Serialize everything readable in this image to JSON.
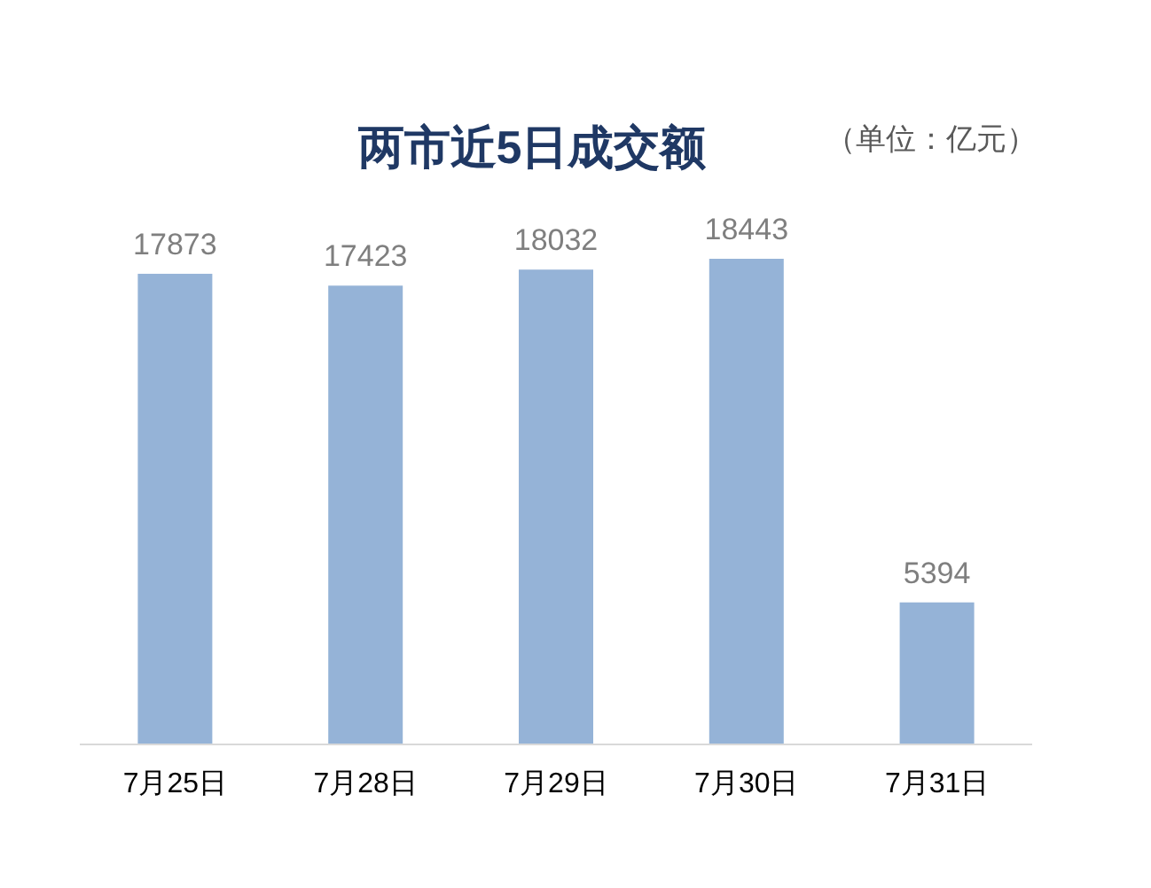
{
  "chart_data": {
    "type": "bar",
    "title": "两市近5日成交额",
    "annotations": [
      "（单位：亿元）"
    ],
    "categories": [
      "7月25日",
      "7月28日",
      "7月29日",
      "7月30日",
      "7月31日"
    ],
    "values": [
      17873,
      17423,
      18032,
      18443,
      5394
    ],
    "color": "#95b3d7",
    "data_labels": true
  }
}
